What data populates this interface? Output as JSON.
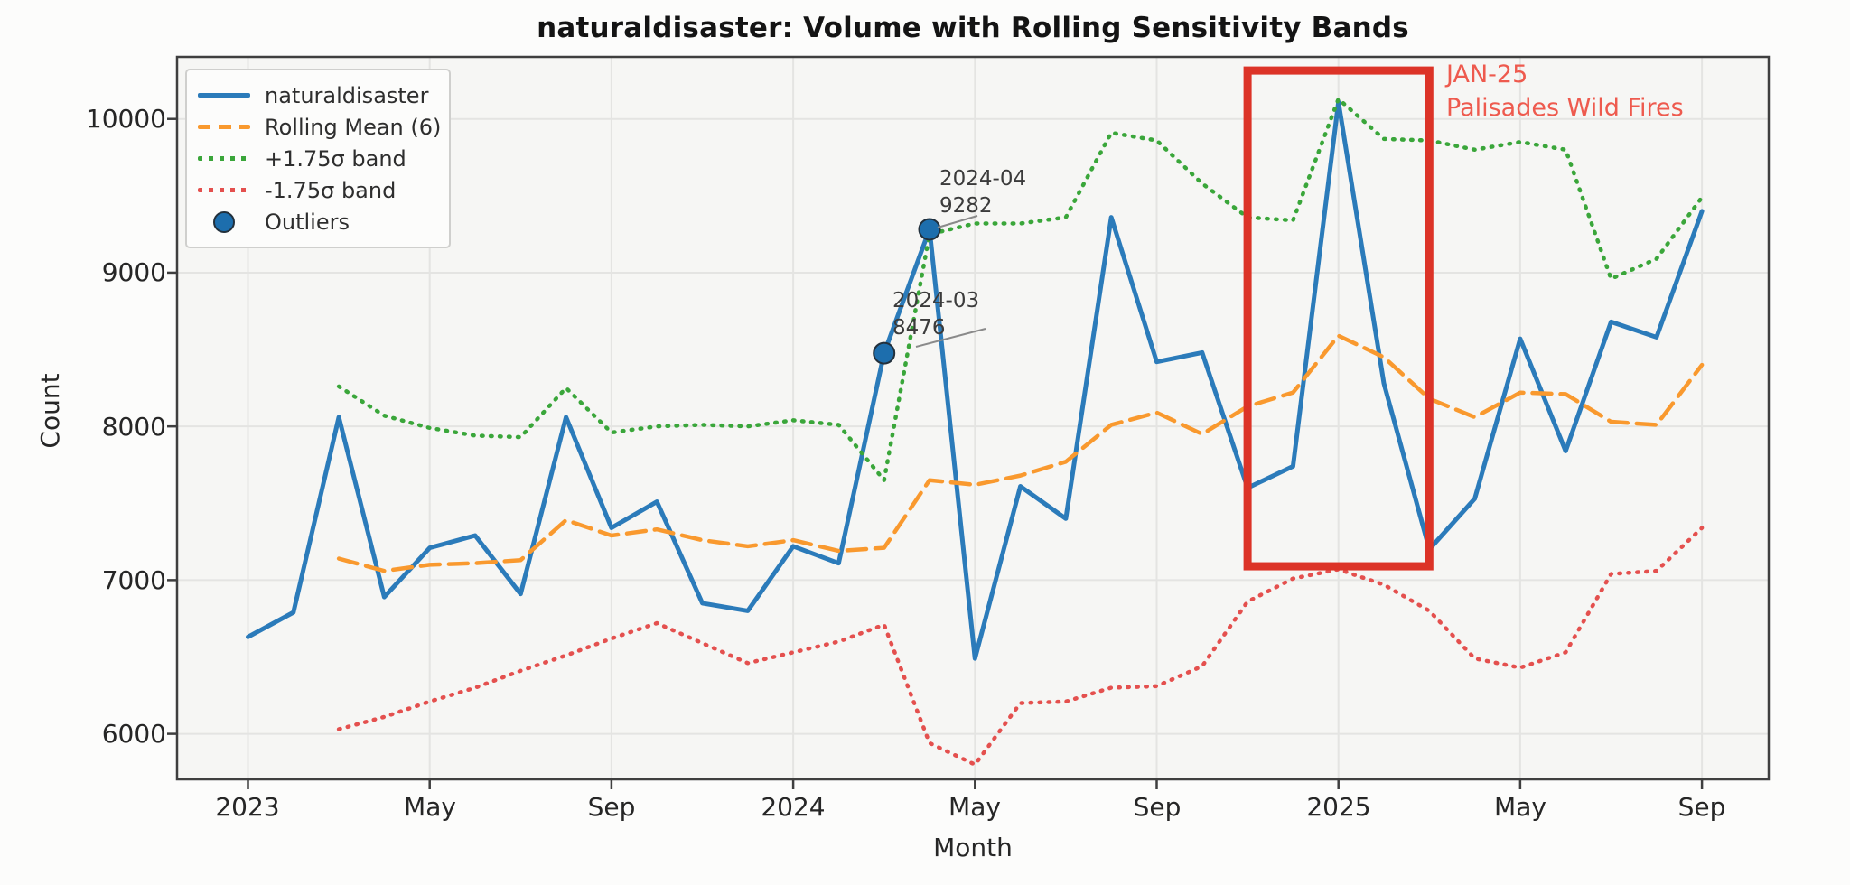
{
  "chart_data": {
    "type": "line",
    "title": "naturaldisaster: Volume with Rolling Sensitivity Bands",
    "xlabel": "Month",
    "ylabel": "Count",
    "grid": true,
    "legend_position": "upper-left",
    "ylim": [
      5700,
      10400
    ],
    "y_ticks": [
      10000,
      9000,
      8000,
      7000,
      6000
    ],
    "y_tick_labels": [
      "10000",
      "9000",
      "8000",
      "7000",
      "6000"
    ],
    "x_tick_positions": [
      0,
      4,
      8,
      12,
      16,
      20,
      24,
      28,
      32
    ],
    "x_tick_labels": [
      "2023",
      "May",
      "Sep",
      "2024",
      "May",
      "Sep",
      "2025",
      "May",
      "Sep"
    ],
    "x_months": [
      "2023-01",
      "2023-02",
      "2023-03",
      "2023-04",
      "2023-05",
      "2023-06",
      "2023-07",
      "2023-08",
      "2023-09",
      "2023-10",
      "2023-11",
      "2023-12",
      "2024-01",
      "2024-02",
      "2024-03",
      "2024-04",
      "2024-05",
      "2024-06",
      "2024-07",
      "2024-08",
      "2024-09",
      "2024-10",
      "2024-11",
      "2024-12",
      "2025-01",
      "2025-02",
      "2025-03",
      "2025-04",
      "2025-05",
      "2025-06",
      "2025-07",
      "2025-08",
      "2025-09"
    ],
    "series": [
      {
        "name": "naturaldisaster",
        "color": "#2b7bba",
        "style": "solid",
        "start_index": 0,
        "values": [
          6630,
          6790,
          8060,
          6890,
          7210,
          7290,
          6910,
          8060,
          7340,
          7510,
          6850,
          6800,
          7220,
          7110,
          8476,
          9282,
          6490,
          7610,
          7400,
          9360,
          8420,
          8480,
          7600,
          7740,
          10110,
          8280,
          7200,
          7530,
          8570,
          7840,
          8680,
          8580,
          9400
        ]
      },
      {
        "name": "Rolling Mean (6)",
        "color": "#f9992e",
        "style": "dashed",
        "start_index": 2,
        "values": [
          7140,
          7060,
          7100,
          7110,
          7130,
          7390,
          7290,
          7330,
          7260,
          7220,
          7260,
          7190,
          7210,
          7650,
          7620,
          7680,
          7770,
          8010,
          8090,
          7950,
          8130,
          8220,
          8590,
          8450,
          8180,
          8060,
          8220,
          8210,
          8030,
          8010,
          8400
        ]
      },
      {
        "name": "+1.75σ band",
        "color": "#3aa63a",
        "style": "dotted",
        "start_index": 2,
        "values": [
          8260,
          8070,
          7990,
          7940,
          7930,
          8250,
          7960,
          8000,
          8010,
          8000,
          8040,
          8010,
          7650,
          9250,
          9320,
          9320,
          9360,
          9910,
          9860,
          9580,
          9360,
          9340,
          10130,
          9870,
          9860,
          9800,
          9850,
          9800,
          8960,
          9090,
          9490
        ]
      },
      {
        "name": "-1.75σ band",
        "color": "#e4504e",
        "style": "dotted",
        "start_index": 2,
        "values": [
          6030,
          6110,
          6210,
          6300,
          6410,
          6510,
          6620,
          6720,
          6590,
          6460,
          6530,
          6600,
          6710,
          5940,
          5800,
          6200,
          6210,
          6300,
          6310,
          6440,
          6860,
          7010,
          7070,
          6970,
          6800,
          6490,
          6430,
          6530,
          7040,
          7060,
          7340
        ]
      }
    ],
    "outliers": {
      "name": "Outliers",
      "color": "#1d6ead",
      "points": [
        {
          "month": "2024-03",
          "index": 14,
          "value": 8476
        },
        {
          "month": "2024-04",
          "index": 15,
          "value": 9282
        }
      ]
    },
    "point_annotations": [
      {
        "text": "2024-04\n9282",
        "lines": [
          "2024-04",
          "9282"
        ]
      },
      {
        "text": "2024-03\n8476",
        "lines": [
          "2024-03",
          "8476"
        ]
      }
    ],
    "region_annotation": {
      "text": "JAN-25\nPalisades Wild Fires",
      "lines": [
        "JAN-25",
        "Palisades Wild Fires"
      ],
      "label_color": "#ee5a4e",
      "box_color": "#dc3327",
      "x_month_range": [
        "2024-11",
        "2025-03"
      ],
      "x_index_range": [
        22,
        26
      ],
      "y_range": [
        7090,
        10315
      ]
    },
    "colors": {
      "volume_line": "#2b7bba",
      "rolling_mean_line": "#f9992e",
      "upper_band_line": "#3aa63a",
      "lower_band_line": "#e4504e",
      "outlier_fill": "#1d6ead",
      "highlight_box": "#dc3327",
      "annotation_text": "#3b3b3b",
      "region_text": "#ee5a4e"
    }
  }
}
